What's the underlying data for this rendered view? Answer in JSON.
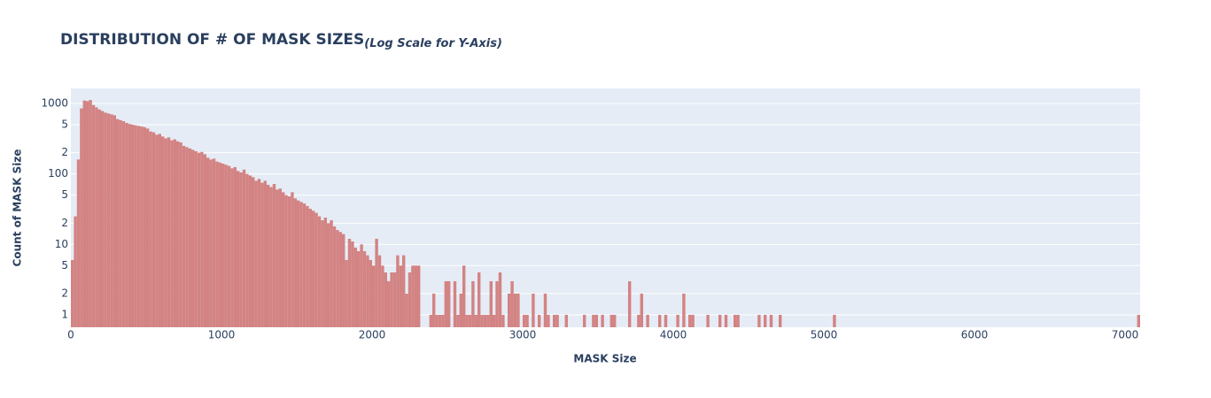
{
  "chart_data": {
    "type": "histogram",
    "title": "DISTRIBUTION OF # OF MASK SIZES",
    "subtitle": "(Log Scale for Y-Axis)",
    "x_label": "MASK Size",
    "y_label": "Count of MASK Size",
    "color": "#d38383",
    "y_log": true,
    "grid": true,
    "xlim": [
      0,
      7100
    ],
    "xticks": [
      0,
      1000,
      2000,
      3000,
      4000,
      5000,
      6000,
      7000
    ],
    "ylim": [
      0.667,
      1633
    ],
    "yticks": [
      1,
      2,
      5,
      10,
      {
        "value": 20,
        "label": "2"
      },
      {
        "value": 50,
        "label": "5"
      },
      100,
      {
        "value": 200,
        "label": "2"
      },
      {
        "value": 500,
        "label": "5"
      },
      1000
    ],
    "bins": [
      0,
      20,
      40,
      60,
      80,
      100,
      120,
      140,
      160,
      180,
      200,
      220,
      240,
      260,
      280,
      300,
      320,
      340,
      360,
      380,
      400,
      420,
      440,
      460,
      480,
      500,
      520,
      540,
      560,
      580,
      600,
      620,
      640,
      660,
      680,
      700,
      720,
      740,
      760,
      780,
      800,
      820,
      840,
      860,
      880,
      900,
      920,
      940,
      960,
      980,
      1000,
      1020,
      1040,
      1060,
      1080,
      1100,
      1120,
      1140,
      1160,
      1180,
      1200,
      1220,
      1240,
      1260,
      1280,
      1300,
      1320,
      1340,
      1360,
      1380,
      1400,
      1420,
      1440,
      1460,
      1480,
      1500,
      1520,
      1540,
      1560,
      1580,
      1600,
      1620,
      1640,
      1660,
      1680,
      1700,
      1720,
      1740,
      1760,
      1780,
      1800,
      1820,
      1840,
      1860,
      1880,
      1900,
      1920,
      1940,
      1960,
      1980,
      2000,
      2020,
      2040,
      2060,
      2080,
      2100,
      2120,
      2140,
      2160,
      2180,
      2200,
      2220,
      2240,
      2260,
      2280,
      2300,
      2320,
      2340,
      2360,
      2380,
      2400,
      2420,
      2440,
      2460,
      2480,
      2500,
      2520,
      2540,
      2560,
      2580,
      2600,
      2620,
      2640,
      2660,
      2680,
      2700,
      2720,
      2740,
      2760,
      2780,
      2800,
      2820,
      2840,
      2860,
      2880,
      2900,
      2920,
      2940,
      2960,
      2980,
      3000,
      3020,
      3040,
      3060,
      3080,
      3100,
      3120,
      3140,
      3160,
      3180,
      3200,
      3220,
      3240,
      3260,
      3280,
      3300,
      3320,
      3340,
      3360,
      3380,
      3400,
      3420,
      3440,
      3460,
      3480,
      3500,
      3520,
      3540,
      3560,
      3580,
      3600,
      3620,
      3640,
      3660,
      3680,
      3700,
      3720,
      3740,
      3760,
      3780,
      3800,
      3820,
      3840,
      3860,
      3880,
      3900,
      3920,
      3940,
      3960,
      3980,
      4000,
      4020,
      4040,
      4060,
      4080,
      4100,
      4120,
      4140,
      4160,
      4180,
      4200,
      4220,
      4240,
      4260,
      4280,
      4300,
      4320,
      4340,
      4360,
      4380,
      4400,
      4420,
      4440,
      4460,
      4480,
      4500,
      4520,
      4540,
      4560,
      4580,
      4600,
      4620,
      4640,
      4660,
      4680,
      4700,
      4720,
      4740,
      4760,
      4780,
      4800,
      4820,
      4840,
      4860,
      4880,
      4900,
      4920,
      4940,
      4960,
      4980,
      5000,
      5020,
      5040,
      5060,
      5080,
      5100,
      5120,
      5140,
      5160,
      5180,
      5200,
      5220,
      5240,
      5260,
      5280,
      5300,
      5320,
      5340,
      5360,
      5380,
      5400,
      5420,
      5440,
      5460,
      5480,
      5500,
      5520,
      5540,
      5560,
      5580,
      5600,
      5620,
      5640,
      5660,
      5680,
      5700,
      5720,
      5740,
      5760,
      5780,
      5800,
      5820,
      5840,
      5860,
      5880,
      5900,
      5920,
      5940,
      5960,
      5980,
      6000,
      6020,
      6040,
      6060,
      6080,
      6100,
      6120,
      6140,
      6160,
      6180,
      6200,
      6220,
      6240,
      6260,
      6280,
      6300,
      6320,
      6340,
      6360,
      6380,
      6400,
      6420,
      6440,
      6460,
      6480,
      6500,
      6520,
      6540,
      6560,
      6580,
      6600,
      6620,
      6640,
      6660,
      6680,
      6700,
      6720,
      6740,
      6760,
      6780,
      6800,
      6820,
      6840,
      6860,
      6880,
      6900,
      6920,
      6940,
      6960,
      6980,
      7000,
      7020,
      7040,
      7060,
      7080,
      7100
    ],
    "counts": [
      6,
      25,
      160,
      850,
      1100,
      1080,
      1120,
      950,
      880,
      820,
      780,
      740,
      720,
      700,
      680,
      600,
      580,
      560,
      530,
      510,
      500,
      490,
      480,
      470,
      460,
      440,
      400,
      390,
      360,
      370,
      340,
      320,
      330,
      300,
      310,
      290,
      280,
      250,
      240,
      230,
      220,
      210,
      200,
      205,
      190,
      170,
      160,
      165,
      150,
      145,
      140,
      135,
      130,
      120,
      125,
      110,
      105,
      115,
      100,
      95,
      90,
      80,
      85,
      75,
      80,
      70,
      65,
      72,
      60,
      62,
      55,
      50,
      48,
      55,
      45,
      42,
      40,
      38,
      35,
      32,
      30,
      28,
      25,
      22,
      24,
      20,
      22,
      18,
      16,
      15,
      14,
      6,
      12,
      11,
      9,
      8,
      10,
      8,
      7,
      6,
      5,
      12,
      7,
      5,
      4,
      3,
      4,
      4,
      7,
      5,
      7,
      2,
      4,
      5,
      5,
      5,
      0,
      0,
      0,
      1,
      2,
      1,
      1,
      1,
      3,
      3,
      0,
      3,
      1,
      2,
      5,
      1,
      1,
      3,
      1,
      4,
      1,
      1,
      1,
      3,
      1,
      3,
      4,
      1,
      0,
      2,
      3,
      2,
      2,
      0,
      1,
      1,
      0,
      2,
      0,
      1,
      0,
      2,
      1,
      0,
      1,
      1,
      0,
      0,
      1,
      0,
      0,
      0,
      0,
      0,
      1,
      0,
      0,
      1,
      1,
      0,
      1,
      0,
      0,
      1,
      1,
      0,
      0,
      0,
      0,
      3,
      0,
      0,
      1,
      2,
      0,
      1,
      0,
      0,
      0,
      1,
      0,
      1,
      0,
      0,
      0,
      1,
      0,
      2,
      0,
      1,
      1,
      0,
      0,
      0,
      0,
      1,
      0,
      0,
      0,
      1,
      0,
      1,
      0,
      0,
      1,
      1,
      0,
      0,
      0,
      0,
      0,
      0,
      1,
      0,
      1,
      0,
      1,
      0,
      0,
      1,
      0,
      0,
      0,
      0,
      0,
      0,
      0,
      0,
      0,
      0,
      0,
      0,
      0,
      0,
      0,
      0,
      0,
      1,
      0,
      0,
      0,
      0,
      0,
      0,
      0,
      0,
      0,
      0,
      0,
      0,
      0,
      0,
      0,
      0,
      0,
      0,
      0,
      0,
      0,
      0,
      0,
      0,
      0,
      0,
      0,
      0,
      0,
      0,
      0,
      0,
      0,
      0,
      0,
      0,
      0,
      0,
      0,
      0,
      0,
      0,
      0,
      0,
      0,
      0,
      0,
      0,
      0,
      0,
      0,
      0,
      0,
      0,
      0,
      0,
      0,
      0,
      0,
      0,
      0,
      0,
      0,
      0,
      0,
      0,
      0,
      0,
      0,
      0,
      0,
      0,
      0,
      0,
      0,
      0,
      0,
      0,
      0,
      0,
      0,
      0,
      0,
      0,
      0,
      0,
      0,
      0,
      0,
      0,
      0,
      0,
      0,
      0,
      0,
      0,
      0,
      0,
      0,
      0,
      1
    ]
  }
}
